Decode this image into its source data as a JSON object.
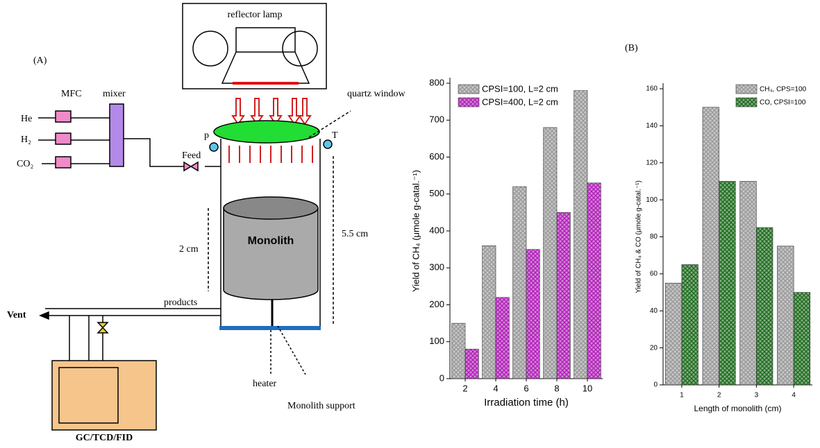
{
  "diagram": {
    "panel_a": "(A)",
    "panel_b": "(B)",
    "lamp": "reflector lamp",
    "mfc": "MFC",
    "mixer": "mixer",
    "gases": [
      "He",
      "H₂",
      "CO₂"
    ],
    "quartz": "quartz window",
    "p": "p",
    "t": "T",
    "feed": "Feed",
    "height_monolith": "2 cm",
    "height_reactor": "5.5 cm",
    "monolith": "Monolith",
    "products": "products",
    "vent": "Vent",
    "heater": "heater",
    "support": "Monolith support",
    "analyzer": "GC/TCD/FID"
  },
  "chart_data": [
    {
      "type": "bar",
      "x_label": "Irradiation time (h)",
      "y_label": "Yield of CH₄ (μmole g-catal.⁻¹)",
      "categories": [
        "2",
        "4",
        "6",
        "8",
        "10"
      ],
      "series": [
        {
          "name": "CPSI=100, L=2 cm",
          "color": "#9a9a9a",
          "values": [
            150,
            360,
            520,
            680,
            780
          ]
        },
        {
          "name": "CPSI=400, L=2 cm",
          "color": "#b020b8",
          "values": [
            80,
            220,
            350,
            450,
            530
          ]
        }
      ],
      "ylim": [
        0,
        800
      ],
      "yticks": [
        0,
        100,
        200,
        300,
        400,
        500,
        600,
        700,
        800
      ],
      "legend": "upper left"
    },
    {
      "type": "bar",
      "x_label": "Length of monolith (cm)",
      "y_label": "Yield of CH₄ & CO (μmole g-catal.⁻¹)",
      "categories": [
        "1",
        "2",
        "3",
        "4"
      ],
      "series": [
        {
          "name": "CH₄, CPS=100",
          "color": "#9a9a9a",
          "values": [
            55,
            150,
            110,
            75
          ]
        },
        {
          "name": "CO,  CPSI=100",
          "color": "#1e6b1e",
          "values": [
            65,
            110,
            85,
            50
          ]
        }
      ],
      "ylim": [
        0,
        160
      ],
      "yticks": [
        0,
        20,
        40,
        60,
        80,
        100,
        120,
        140,
        160
      ],
      "legend": "upper right"
    }
  ]
}
